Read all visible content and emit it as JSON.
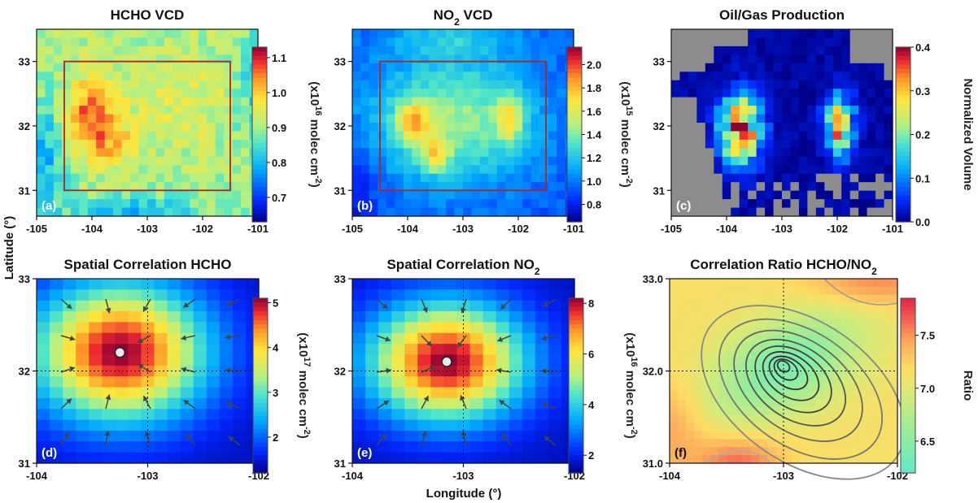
{
  "figure": {
    "ylabel": "Latitude (°)",
    "xlabel": "Longitude (°)"
  },
  "chart_data": [
    {
      "type": "heatmap",
      "panel_label": "(a)",
      "title_parts": [
        "HCHO VCD"
      ],
      "xlim": [
        -105,
        -101
      ],
      "ylim": [
        30.6,
        33.5
      ],
      "xticks": [
        "-105",
        "-104",
        "-103",
        "-102",
        "-101"
      ],
      "yticks": [
        "31",
        "32",
        "33"
      ],
      "grid": false,
      "field": "hcho_vcd",
      "box": {
        "lon": [
          -104.5,
          -101.5
        ],
        "lat": [
          31.0,
          33.0
        ],
        "color": "#b22222"
      },
      "colorbar": {
        "ticks": [
          "0.7",
          "0.8",
          "0.9",
          "1.0",
          "1.1"
        ],
        "range": [
          0.63,
          1.13
        ],
        "label_parts": [
          "(x10",
          "16",
          " molec cm",
          "-2",
          ")"
        ]
      }
    },
    {
      "type": "heatmap",
      "panel_label": "(b)",
      "title_parts": [
        "NO",
        "2",
        " VCD"
      ],
      "xlim": [
        -105,
        -101
      ],
      "ylim": [
        30.6,
        33.5
      ],
      "xticks": [
        "-105",
        "-104",
        "-103",
        "-102",
        "-101"
      ],
      "yticks": [
        "31",
        "32",
        "33"
      ],
      "grid": false,
      "field": "no2_vcd",
      "box": {
        "lon": [
          -104.5,
          -101.5
        ],
        "lat": [
          31.0,
          33.0
        ],
        "color": "#b22222"
      },
      "colorbar": {
        "ticks": [
          "0.8",
          "1.0",
          "1.2",
          "1.4",
          "1.6",
          "1.8",
          "2.0"
        ],
        "range": [
          0.65,
          2.15
        ],
        "label_parts": [
          "(x10",
          "15",
          " molec cm",
          "-2",
          ")"
        ]
      }
    },
    {
      "type": "heatmap",
      "panel_label": "(c)",
      "title_parts": [
        "Oil/Gas Production"
      ],
      "xlim": [
        -105,
        -101
      ],
      "ylim": [
        30.6,
        33.5
      ],
      "xticks": [
        "-105",
        "-104",
        "-103",
        "-102",
        "-101"
      ],
      "yticks": [
        "31",
        "32",
        "33"
      ],
      "grid": false,
      "field": "oil_gas",
      "no_data_color": "#8c8c8c",
      "colorbar": {
        "ticks": [
          "0.0",
          "0.1",
          "0.2",
          "0.3",
          "0.4"
        ],
        "range": [
          0.0,
          0.4
        ],
        "label_parts": [
          "Normalized Volume"
        ]
      }
    },
    {
      "type": "heatmap",
      "panel_label": "(d)",
      "title_parts": [
        "Spatial Correlation HCHO"
      ],
      "xlim": [
        -104,
        -102
      ],
      "ylim": [
        31,
        33
      ],
      "xticks": [
        "-104",
        "-103",
        "-102"
      ],
      "yticks": [
        "31",
        "32",
        "33"
      ],
      "grid": false,
      "field": "corr_hcho",
      "peak": {
        "lon": -103.25,
        "lat": 32.2
      },
      "crosshair": {
        "lon": -103.0,
        "lat": 32.0
      },
      "colorbar": {
        "ticks": [
          "2",
          "3",
          "4",
          "5"
        ],
        "range": [
          1.2,
          5.1
        ],
        "label_parts": [
          "(x10",
          "17",
          " molec cm",
          "-2",
          ")"
        ]
      }
    },
    {
      "type": "heatmap",
      "panel_label": "(e)",
      "title_parts": [
        "Spatial Correlation NO",
        "2"
      ],
      "xlim": [
        -104,
        -102
      ],
      "ylim": [
        31,
        33
      ],
      "xticks": [
        "-104",
        "-103",
        "-102"
      ],
      "yticks": [
        "31",
        "32",
        "33"
      ],
      "grid": false,
      "field": "corr_no2",
      "peak": {
        "lon": -103.15,
        "lat": 32.1
      },
      "crosshair": {
        "lon": -103.0,
        "lat": 32.0
      },
      "colorbar": {
        "ticks": [
          "2",
          "4",
          "6",
          "8"
        ],
        "range": [
          1.3,
          8.2
        ],
        "label_parts": [
          "(x10",
          "16",
          " molec cm",
          "-2",
          ")"
        ]
      }
    },
    {
      "type": "heatmap",
      "panel_label": "(f)",
      "title_parts": [
        "Correlation Ratio HCHO/NO",
        "2"
      ],
      "xlim": [
        -104,
        -102
      ],
      "ylim": [
        31,
        33
      ],
      "xticks": [
        "-104",
        "-103",
        "-102"
      ],
      "yticks": [
        "31.0",
        "32.0",
        "33.0"
      ],
      "grid": false,
      "field": "ratio",
      "center": {
        "lon": -103.0,
        "lat": 32.05
      },
      "crosshair": {
        "lon": -103.0,
        "lat": 32.0
      },
      "colorbar": {
        "ticks": [
          "6.5",
          "7.0",
          "7.5"
        ],
        "range": [
          6.2,
          7.85
        ],
        "label_parts": [
          "Ratio"
        ]
      }
    }
  ]
}
